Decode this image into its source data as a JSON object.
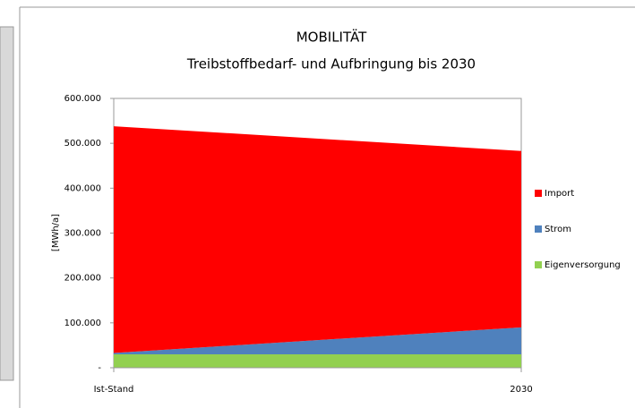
{
  "chart_data": {
    "type": "stacked_area",
    "title": "MOBILITÄT",
    "subtitle": "Treibstoffbedarf- und Aufbringung bis 2030",
    "y_label": "[MWh/a]",
    "categories": [
      "Ist-Stand",
      "2030"
    ],
    "series": [
      {
        "name": "Eigenversorgung",
        "color": "#92d050",
        "values": [
          30000,
          30000
        ]
      },
      {
        "name": "Strom",
        "color": "#4f81bd",
        "values": [
          3000,
          60000
        ]
      },
      {
        "name": "Import",
        "color": "#ff0000",
        "values": [
          505000,
          393000
        ]
      }
    ],
    "ylim": [
      0,
      600000
    ],
    "yticks": [
      {
        "value": 0,
        "label": "-"
      },
      {
        "value": 100000,
        "label": "100.000"
      },
      {
        "value": 200000,
        "label": "200.000"
      },
      {
        "value": 300000,
        "label": "300.000"
      },
      {
        "value": 400000,
        "label": "400.000"
      },
      {
        "value": 500000,
        "label": "500.000"
      },
      {
        "value": 600000,
        "label": "600.000"
      }
    ],
    "legend": "right"
  }
}
